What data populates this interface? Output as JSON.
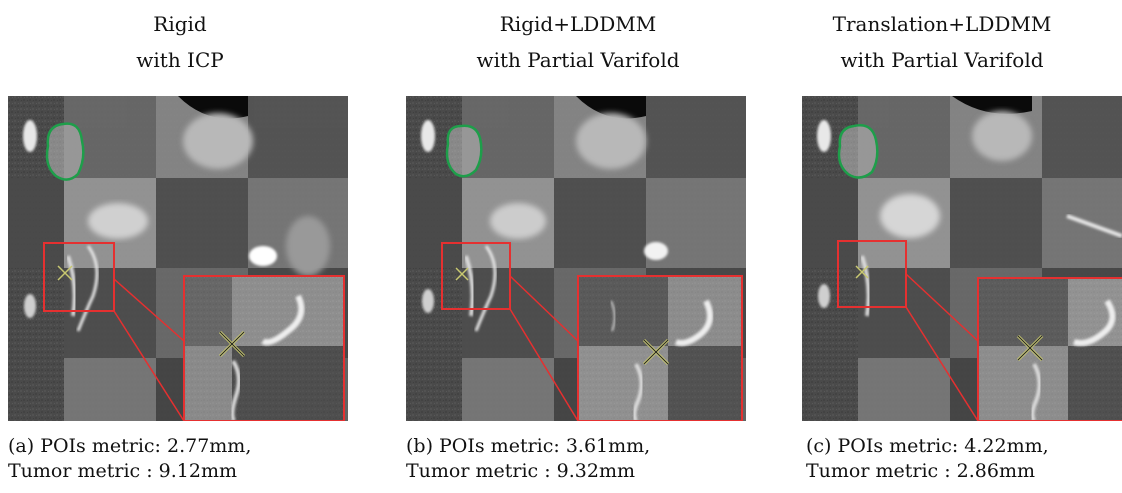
{
  "panels": [
    {
      "title_line1": "Rigid",
      "title_line2": "with ICP",
      "caption_line1": "(a) POIs metric: 2.77mm,",
      "caption_line2": "Tumor metric : 9.12mm"
    },
    {
      "title_line1": "Rigid+LDDMM",
      "title_line2": "with Partial Varifold",
      "caption_line1": "(b) POIs metric: 3.61mm,",
      "caption_line2": "Tumor metric : 9.32mm"
    },
    {
      "title_line1": "Translation+LDDMM",
      "title_line2": "with Partial Varifold",
      "caption_line1": "(c) POIs metric: 4.22mm,",
      "caption_line2": "Tumor metric : 2.86mm"
    }
  ],
  "colors": {
    "roi_box": "#e53030",
    "tumor_contour": "#1e9e4a",
    "poi_marker": "#c8c870"
  }
}
